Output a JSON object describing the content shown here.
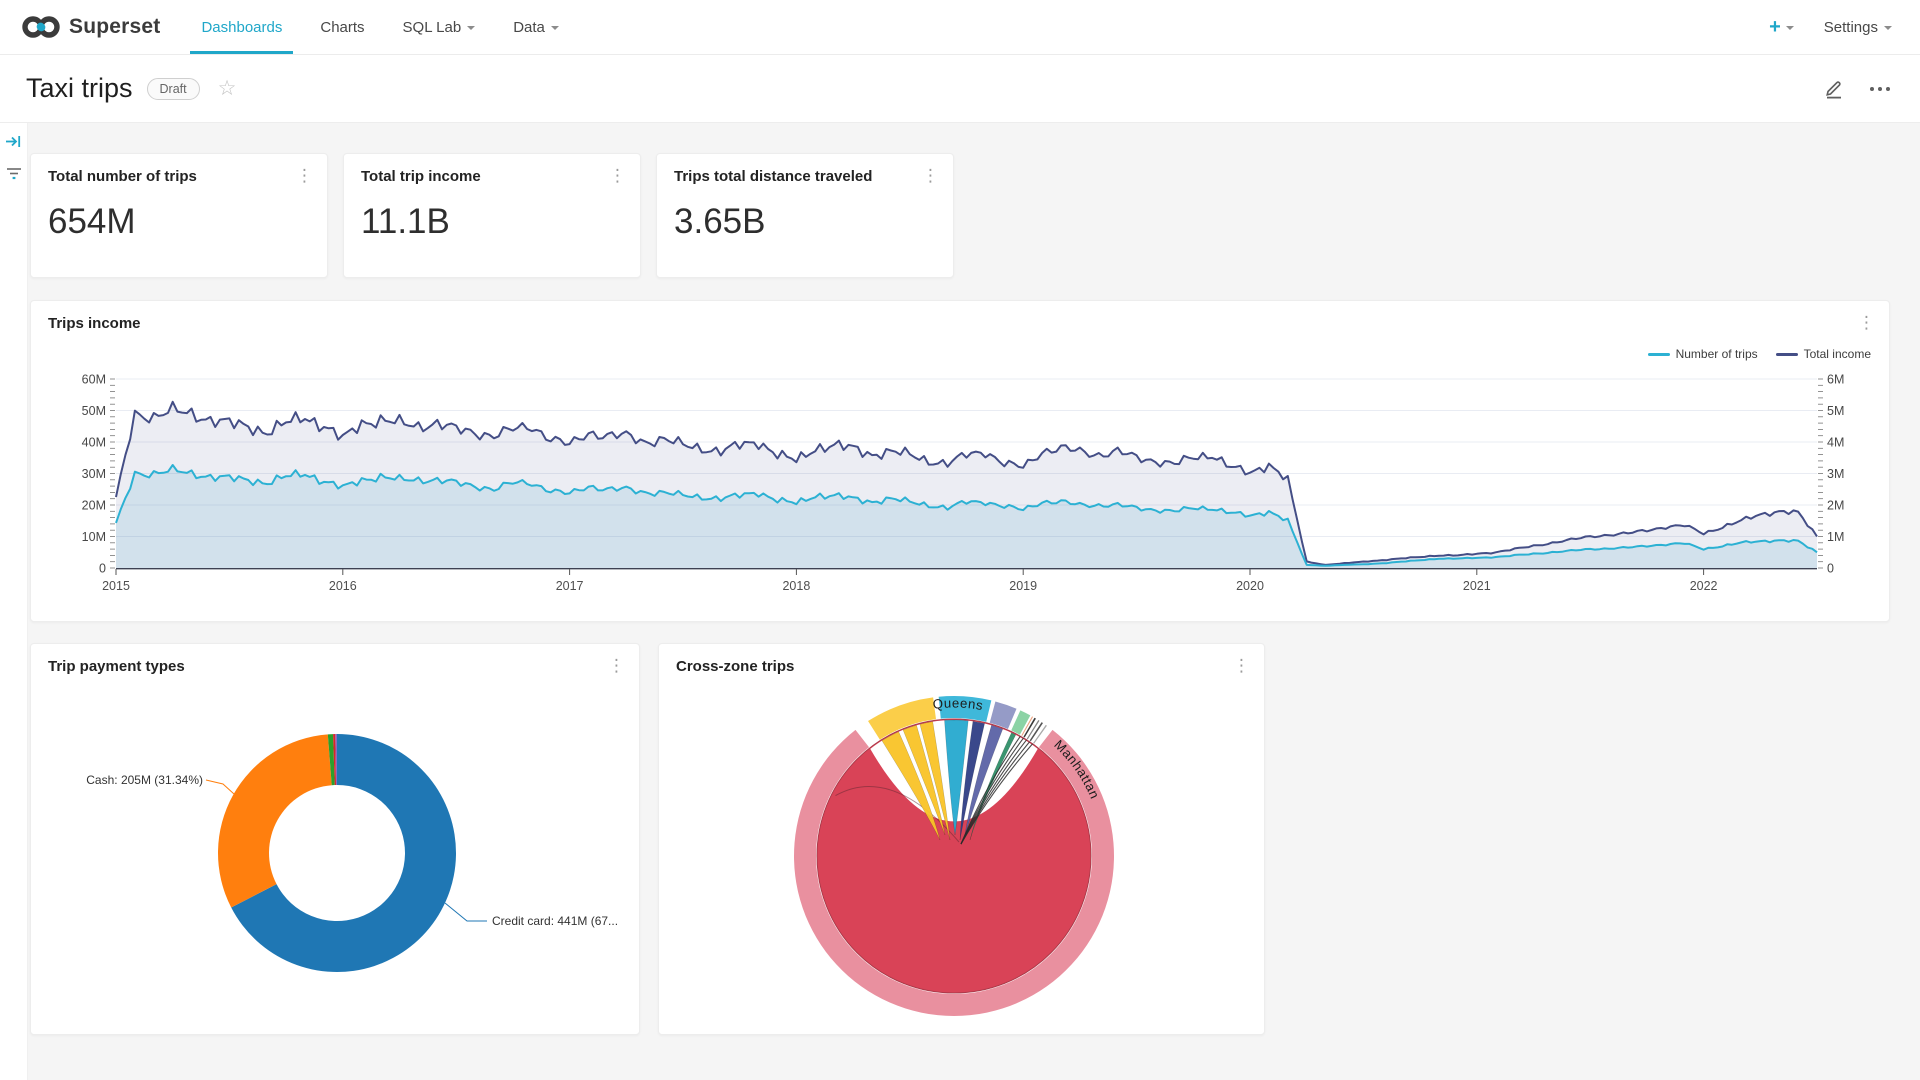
{
  "nav": {
    "brand": "Superset",
    "items": [
      {
        "label": "Dashboards",
        "active": true
      },
      {
        "label": "Charts",
        "active": false
      },
      {
        "label": "SQL Lab",
        "active": false,
        "has_caret": true
      },
      {
        "label": "Data",
        "active": false,
        "has_caret": true
      }
    ],
    "new_button": "+",
    "settings": "Settings"
  },
  "header": {
    "title": "Taxi trips",
    "badge": "Draft",
    "icons": {
      "favorite": "star-outline",
      "edit": "pencil",
      "more": "horizontal-ellipsis"
    }
  },
  "kpis": [
    {
      "title": "Total number of trips",
      "value": "654M"
    },
    {
      "title": "Total trip income",
      "value": "11.1B"
    },
    {
      "title": "Trips total distance traveled",
      "value": "3.65B"
    }
  ],
  "trips_income": {
    "title": "Trips income"
  },
  "payment_types": {
    "title": "Trip payment types"
  },
  "cross_zone": {
    "title": "Cross-zone trips"
  },
  "colors": {
    "accent": "#20A7C9",
    "trips_line": "#2CB1D3",
    "income_line": "#444E86",
    "credit_blue": "#1F77B4",
    "cash_orange": "#FF7F0E",
    "page_bg": "#F5F5F5"
  },
  "chart_data": [
    {
      "type": "line",
      "title": "Trips income",
      "x_axis": {
        "tick_labels": [
          "2015",
          "2016",
          "2017",
          "2018",
          "2019",
          "2020",
          "2021",
          "2022"
        ],
        "range": [
          2015,
          2022.5
        ]
      },
      "y_axis_left": {
        "tick_labels": [
          "0",
          "10M",
          "20M",
          "30M",
          "40M",
          "50M",
          "60M"
        ],
        "max": 60
      },
      "y_axis_right": {
        "tick_labels": [
          "0",
          "1M",
          "2M",
          "3M",
          "4M",
          "5M",
          "6M"
        ],
        "max": 6
      },
      "grid": true,
      "legend_position": "top-right",
      "legend": [
        "Number of trips",
        "Total income"
      ],
      "series": [
        {
          "name": "Total income",
          "axis": "left",
          "color": "#444E86",
          "area_fill": "rgba(68,80,141,0.10)",
          "points": 91,
          "x_start": 2015,
          "x_end": 2022.5,
          "monthly_values": [
            22,
            49,
            48,
            50,
            49,
            47,
            46,
            45,
            43,
            46,
            48,
            45,
            41,
            46,
            47,
            46,
            45,
            46,
            44,
            43,
            42,
            44,
            45,
            41,
            39,
            43,
            42,
            42,
            40,
            41,
            39,
            38,
            37,
            39,
            40,
            36,
            34,
            38,
            39,
            38,
            36,
            37,
            36,
            34,
            33,
            36,
            37,
            33,
            32,
            37,
            38,
            37,
            36,
            37,
            35,
            34,
            33,
            35,
            36,
            32,
            30,
            33,
            28,
            2,
            1,
            1.5,
            2,
            2.5,
            3,
            3.5,
            4,
            4,
            4.5,
            5,
            6,
            7,
            8,
            9,
            10,
            10.5,
            11,
            12,
            13,
            13.5,
            11,
            13,
            15,
            17,
            18,
            17.5,
            10
          ]
        },
        {
          "name": "Number of trips",
          "axis": "right",
          "color": "#2CB1D3",
          "area_fill": "rgba(42,150,190,0.13)",
          "points": 91,
          "x_start": 2015,
          "x_end": 2022.5,
          "monthly_values": [
            1.4,
            3.0,
            3.0,
            3.1,
            3.0,
            2.9,
            2.85,
            2.8,
            2.7,
            2.9,
            3.0,
            2.75,
            2.55,
            2.8,
            2.9,
            2.8,
            2.8,
            2.8,
            2.7,
            2.6,
            2.5,
            2.7,
            2.7,
            2.45,
            2.35,
            2.6,
            2.5,
            2.5,
            2.4,
            2.4,
            2.3,
            2.25,
            2.2,
            2.3,
            2.4,
            2.15,
            2.05,
            2.3,
            2.3,
            2.2,
            2.1,
            2.2,
            2.1,
            2.0,
            1.9,
            2.1,
            2.1,
            1.95,
            1.85,
            2.1,
            2.1,
            2.0,
            2.0,
            2.0,
            1.9,
            1.85,
            1.8,
            1.9,
            1.9,
            1.75,
            1.65,
            1.8,
            1.5,
            0.1,
            0.07,
            0.1,
            0.12,
            0.15,
            0.2,
            0.25,
            0.3,
            0.3,
            0.32,
            0.35,
            0.4,
            0.45,
            0.5,
            0.55,
            0.6,
            0.62,
            0.65,
            0.7,
            0.75,
            0.78,
            0.6,
            0.7,
            0.8,
            0.85,
            0.88,
            0.85,
            0.5
          ]
        }
      ]
    },
    {
      "type": "pie",
      "title": "Trip payment types",
      "donut": true,
      "slices": [
        {
          "label": "Credit card",
          "value": "441M",
          "pct": 67.43,
          "color": "#1F77B4"
        },
        {
          "label": "Cash",
          "value": "205M",
          "pct": 31.34,
          "color": "#FF7F0E"
        },
        {
          "label": "",
          "value": "",
          "pct": 0.7,
          "color": "#2CA02C"
        },
        {
          "label": "",
          "value": "",
          "pct": 0.3,
          "color": "#D62728"
        },
        {
          "label": "",
          "value": "",
          "pct": 0.23,
          "color": "#9467BD"
        }
      ],
      "visible_callouts": [
        {
          "text": "Cash: 205M (31.34%)",
          "slice": "Cash"
        },
        {
          "text": "Credit card: 441M (67...",
          "slice": "Credit card",
          "truncated": true
        }
      ]
    },
    {
      "type": "chord",
      "title": "Cross-zone trips",
      "visible_labels": [
        "Queens",
        "Manhattan"
      ],
      "arcs": [
        {
          "label": "Manhattan",
          "label_angle": 42,
          "start": 38,
          "end": 322,
          "color": "#E9909F"
        },
        {
          "label": "",
          "start": 327.5,
          "end": 352.5,
          "color": "#FBCE49"
        },
        {
          "label": "Queens",
          "label_angle": 352,
          "start": 354.5,
          "end": 373.5,
          "color": "#3FB8DA"
        },
        {
          "label": "",
          "start": 375,
          "end": 383,
          "color": "#959BC7"
        },
        {
          "label": "",
          "start": 384.5,
          "end": 388.5,
          "color": "#8BD3A5"
        },
        {
          "label": "",
          "start": 389.2,
          "end": 389.6,
          "color": "#EBA17C"
        },
        {
          "label": "",
          "start": 390.2,
          "end": 390.8,
          "color": "#3A3A3A"
        },
        {
          "label": "",
          "start": 391.8,
          "end": 392.3,
          "color": "#888888"
        },
        {
          "label": "",
          "start": 393.2,
          "end": 393.8,
          "color": "#555555"
        },
        {
          "label": "",
          "start": 395,
          "end": 395.5,
          "color": "#AAAAAA"
        }
      ],
      "self_link": {
        "label": "Manhattan",
        "color": "#D94357",
        "outline": "#AD3A4A"
      },
      "ribbons": [
        {
          "a1": 328,
          "a2": 336,
          "color": "#F9C327"
        },
        {
          "a1": 338,
          "a2": 344,
          "color": "#F9C327"
        },
        {
          "a1": 345.5,
          "a2": 351,
          "color": "#F9C327"
        },
        {
          "a1": 356,
          "a2": 366,
          "color": "#26A9CF"
        },
        {
          "a1": 368,
          "a2": 373,
          "color": "#2F3E85"
        },
        {
          "a1": 376,
          "a2": 381,
          "color": "#5B62A5"
        },
        {
          "a1": 385,
          "a2": 387,
          "color": "#2F8F68"
        }
      ],
      "hairline_angles": [
        389,
        390.5,
        392,
        393.5,
        395
      ]
    }
  ]
}
